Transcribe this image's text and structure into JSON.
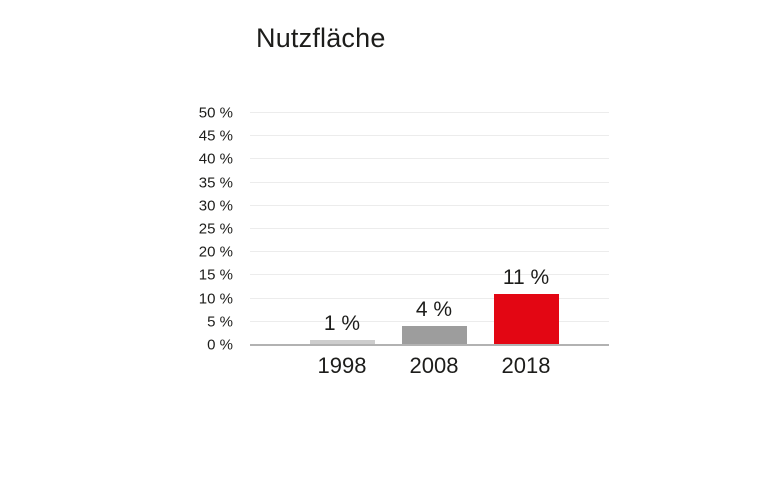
{
  "page": {
    "background": "#ffffff"
  },
  "chart_data": {
    "type": "bar",
    "title": "Nutzfläche",
    "categories": [
      "1998",
      "2008",
      "2018"
    ],
    "values": [
      1,
      4,
      11
    ],
    "value_labels": [
      "1 %",
      "4 %",
      "11 %"
    ],
    "bar_colors": [
      "#cdcdcd",
      "#9d9d9d",
      "#e30613"
    ],
    "xlabel": "",
    "ylabel": "",
    "ylim": [
      0,
      50
    ],
    "ytick_step": 5,
    "ytick_suffix": " %",
    "ytick_labels": [
      "0 %",
      "5 %",
      "10 %",
      "15 %",
      "20 %",
      "25 %",
      "30 %",
      "35 %",
      "40 %",
      "45 %",
      "50 %"
    ],
    "grid": "horizontal",
    "legend": "none"
  },
  "colors": {
    "grid": "#ececec",
    "axis": "#b2b2b2",
    "text": "#1d1d1b",
    "background": "#ffffff",
    "accent": "#e30613"
  }
}
